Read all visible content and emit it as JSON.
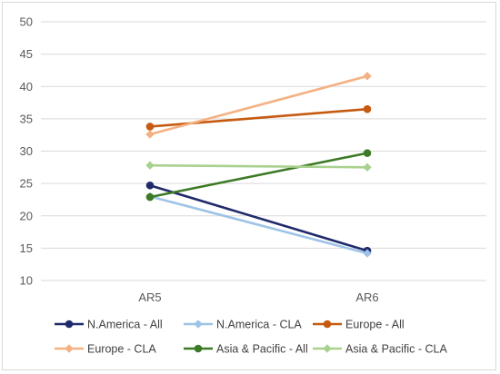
{
  "chart_data": {
    "type": "line",
    "title": "",
    "xlabel": "",
    "ylabel": "",
    "categories": [
      "AR5",
      "AR6"
    ],
    "ylim": [
      10,
      50
    ],
    "yticks": [
      10,
      15,
      20,
      25,
      30,
      35,
      40,
      45,
      50
    ],
    "grid": "horizontal",
    "legend_position": "bottom",
    "series": [
      {
        "name": "N.America - All",
        "values": [
          24.7,
          14.6
        ],
        "color": "#1f2a6b",
        "marker": "circle"
      },
      {
        "name": "N.America - CLA",
        "values": [
          23.0,
          14.2
        ],
        "color": "#9dc3e6",
        "marker": "diamond"
      },
      {
        "name": "Europe - All",
        "values": [
          33.8,
          36.5
        ],
        "color": "#c55a11",
        "marker": "circle"
      },
      {
        "name": "Europe - CLA",
        "values": [
          32.6,
          41.6
        ],
        "color": "#f4b183",
        "marker": "diamond"
      },
      {
        "name": "Asia & Pacific - All",
        "values": [
          22.9,
          29.7
        ],
        "color": "#3d7a26",
        "marker": "circle"
      },
      {
        "name": "Asia & Pacific - CLA",
        "values": [
          27.8,
          27.5
        ],
        "color": "#a9d18e",
        "marker": "diamond"
      }
    ]
  }
}
